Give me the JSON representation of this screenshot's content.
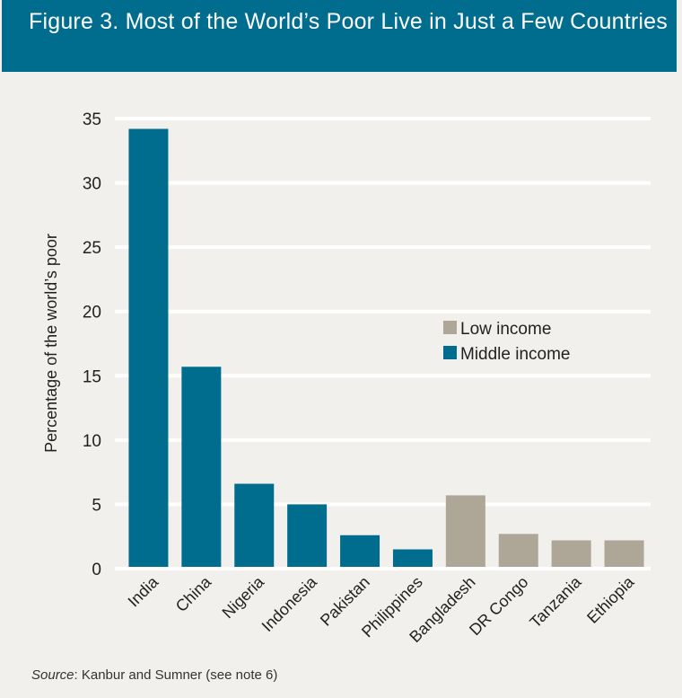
{
  "header": {
    "title": "Figure 3. Most of the World’s Poor Live in Just a Few Countries"
  },
  "chart_data": {
    "type": "bar",
    "title": "Figure 3. Most of the World’s Poor Live in Just a Few Countries",
    "xlabel": "",
    "ylabel": "Percentage of the world’s poor",
    "ylim": [
      0,
      35
    ],
    "yticks": [
      0,
      5,
      10,
      15,
      20,
      25,
      30,
      35
    ],
    "grid": true,
    "legend_position": "center-right",
    "categories": [
      "India",
      "China",
      "Nigeria",
      "Indonesia",
      "Pakistan",
      "Philippines",
      "Bangladesh",
      "DR Congo",
      "Tanzania",
      "Ethiopia"
    ],
    "values": [
      34.2,
      15.7,
      6.6,
      5.0,
      2.6,
      1.5,
      5.7,
      2.7,
      2.2,
      2.2
    ],
    "groups": [
      "Middle income",
      "Middle income",
      "Middle income",
      "Middle income",
      "Middle income",
      "Middle income",
      "Low income",
      "Low income",
      "Low income",
      "Low income"
    ],
    "legend": [
      {
        "name": "Low income",
        "color": "#aea697"
      },
      {
        "name": "Middle income",
        "color": "#006d8f"
      }
    ]
  },
  "footer": {
    "source_label": "Source",
    "source_text": ": Kanbur and Sumner (see note 6)"
  }
}
